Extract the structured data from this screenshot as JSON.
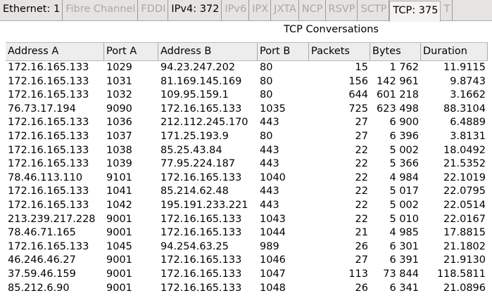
{
  "tabs": [
    {
      "label": "Ethernet: 1",
      "state": "active"
    },
    {
      "label": "Fibre Channel",
      "state": "disabled"
    },
    {
      "label": "FDDI",
      "state": "disabled"
    },
    {
      "label": "IPv4: 372",
      "state": "active"
    },
    {
      "label": "IPv6",
      "state": "disabled"
    },
    {
      "label": "IPX",
      "state": "disabled"
    },
    {
      "label": "JXTA",
      "state": "disabled"
    },
    {
      "label": "NCP",
      "state": "disabled"
    },
    {
      "label": "RSVP",
      "state": "disabled"
    },
    {
      "label": "SCTP",
      "state": "disabled"
    },
    {
      "label": "TCP: 375",
      "state": "selected"
    },
    {
      "label": "T",
      "state": "disabled"
    }
  ],
  "table": {
    "title": "TCP Conversations",
    "headers": [
      "Address A",
      "Port A",
      "Address B",
      "Port B",
      "Packets",
      "Bytes",
      "Duration"
    ],
    "rows": [
      [
        "172.16.165.133",
        "1029",
        "94.23.247.202",
        "80",
        "15",
        "1 762",
        "11.9115"
      ],
      [
        "172.16.165.133",
        "1031",
        "81.169.145.169",
        "80",
        "156",
        "142 961",
        "9.8743"
      ],
      [
        "172.16.165.133",
        "1032",
        "109.95.159.1",
        "80",
        "644",
        "601 218",
        "3.1662"
      ],
      [
        "76.73.17.194",
        "9090",
        "172.16.165.133",
        "1035",
        "725",
        "623 498",
        "88.3104"
      ],
      [
        "172.16.165.133",
        "1036",
        "212.112.245.170",
        "443",
        "27",
        "6 900",
        "6.4889"
      ],
      [
        "172.16.165.133",
        "1037",
        "171.25.193.9",
        "80",
        "27",
        "6 396",
        "3.8131"
      ],
      [
        "172.16.165.133",
        "1038",
        "85.25.43.84",
        "443",
        "22",
        "5 002",
        "18.0492"
      ],
      [
        "172.16.165.133",
        "1039",
        "77.95.224.187",
        "443",
        "22",
        "5 366",
        "21.5352"
      ],
      [
        "78.46.113.110",
        "9101",
        "172.16.165.133",
        "1040",
        "22",
        "4 984",
        "22.1019"
      ],
      [
        "172.16.165.133",
        "1041",
        "85.214.62.48",
        "443",
        "22",
        "5 017",
        "22.0795"
      ],
      [
        "172.16.165.133",
        "1042",
        "195.191.233.221",
        "443",
        "22",
        "5 002",
        "22.0514"
      ],
      [
        "213.239.217.228",
        "9001",
        "172.16.165.133",
        "1043",
        "22",
        "5 010",
        "22.0167"
      ],
      [
        "78.46.71.165",
        "9001",
        "172.16.165.133",
        "1044",
        "21",
        "4 985",
        "17.8815"
      ],
      [
        "172.16.165.133",
        "1045",
        "94.254.63.25",
        "989",
        "26",
        "6 301",
        "21.1802"
      ],
      [
        "46.246.46.27",
        "9001",
        "172.16.165.133",
        "1046",
        "27",
        "6 391",
        "21.9130"
      ],
      [
        "37.59.46.159",
        "9001",
        "172.16.165.133",
        "1047",
        "113",
        "73 844",
        "118.5811"
      ],
      [
        "85.212.6.90",
        "9001",
        "172.16.165.133",
        "1048",
        "26",
        "6 341",
        "21.0896"
      ]
    ]
  }
}
